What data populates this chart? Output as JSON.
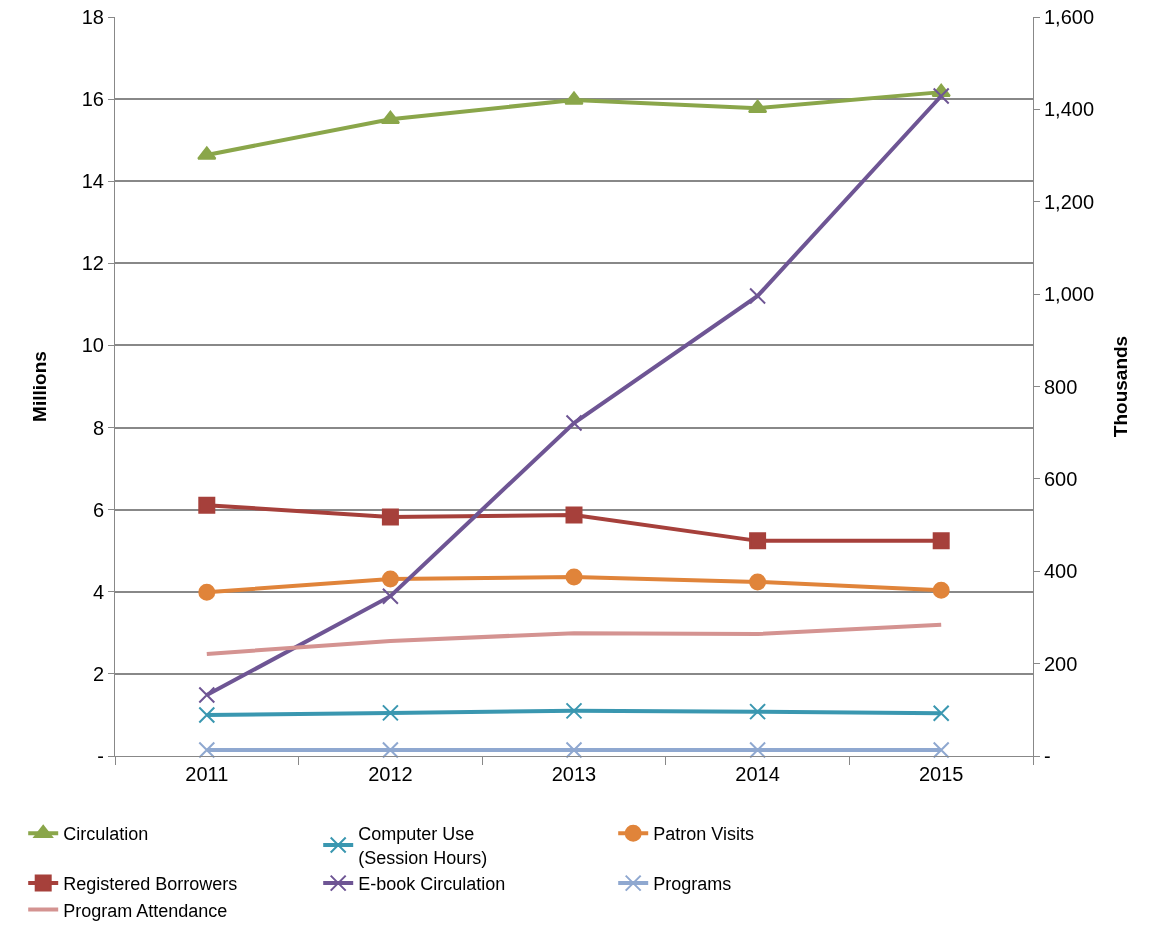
{
  "chart_data": {
    "type": "line",
    "ylabel": "Millions",
    "y2label": "Thousands",
    "categories": [
      "2011",
      "2012",
      "2013",
      "2014",
      "2015"
    ],
    "series": [
      {
        "name": "Circulation",
        "color": "#8aa64a",
        "marker": "triangle",
        "values": [
          14.64,
          15.51,
          15.98,
          15.78,
          16.17
        ]
      },
      {
        "name": "Computer Use\n(Session Hours)",
        "color": "#3a97b0",
        "marker": "cross",
        "values": [
          1.0,
          1.05,
          1.1,
          1.08,
          1.04
        ]
      },
      {
        "name": "Patron Visits",
        "color": "#e0843a",
        "marker": "circle",
        "values": [
          3.99,
          4.31,
          4.36,
          4.24,
          4.04
        ]
      },
      {
        "name": "Registered Borrowers",
        "color": "#a6403b",
        "marker": "square",
        "values": [
          6.11,
          5.82,
          5.87,
          5.24,
          5.24
        ]
      },
      {
        "name": "E-book Circulation",
        "color": "#6e5594",
        "marker": "cross",
        "axis": "y2",
        "values": [
          132,
          346,
          721,
          996,
          1429
        ]
      },
      {
        "name": "Programs",
        "color": "#8fa8d0",
        "marker": "cross",
        "axis": "y2",
        "values": [
          13,
          13,
          13,
          13,
          13
        ]
      },
      {
        "name": "Program Attendance",
        "color": "#d49391",
        "marker": "none",
        "axis": "y2",
        "values": [
          221,
          249,
          266,
          264,
          284
        ]
      }
    ],
    "ylim": [
      0,
      18
    ],
    "yticks": [
      {
        "value": 0,
        "label": "-"
      },
      2,
      4,
      6,
      8,
      10,
      12,
      14,
      16,
      18
    ],
    "y2lim": [
      0,
      1600
    ],
    "y2ticks": [
      {
        "value": 0,
        "label": "-"
      },
      200,
      400,
      600,
      800,
      {
        "value": 1000,
        "label": "1,000"
      },
      {
        "value": 1200,
        "label": "1,200"
      },
      {
        "value": 1400,
        "label": "1,400"
      },
      {
        "value": 1600,
        "label": "1,600"
      }
    ],
    "grid": "y",
    "legend": "bottom",
    "line_style": "solid"
  }
}
